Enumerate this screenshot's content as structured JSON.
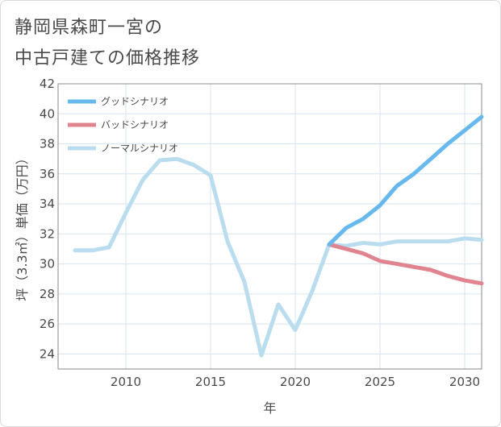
{
  "title_lines": [
    "静岡県森町一宮の",
    "中古戸建ての価格推移"
  ],
  "chart_data": {
    "type": "line",
    "title": "静岡県森町一宮の中古戸建ての価格推移",
    "xlabel": "年",
    "ylabel": "坪（3.3㎡）単価（万円）",
    "xlim": [
      2006,
      2031
    ],
    "ylim": [
      23,
      42
    ],
    "xticks": [
      2010,
      2015,
      2020,
      2025,
      2030
    ],
    "yticks": [
      24,
      26,
      28,
      30,
      32,
      34,
      36,
      38,
      40,
      42
    ],
    "grid": true,
    "legend_position": "top-left",
    "series": [
      {
        "name": "グッドシナリオ",
        "color": "#67b8ec",
        "x": [
          2022,
          2023,
          2024,
          2025,
          2026,
          2027,
          2028,
          2029,
          2030,
          2031
        ],
        "values": [
          31.3,
          32.4,
          33.0,
          33.9,
          35.2,
          36.0,
          37.0,
          38.0,
          38.9,
          39.8
        ]
      },
      {
        "name": "バッドシナリオ",
        "color": "#e0848f",
        "x": [
          2022,
          2023,
          2024,
          2025,
          2026,
          2027,
          2028,
          2029,
          2030,
          2031
        ],
        "values": [
          31.3,
          31.0,
          30.7,
          30.2,
          30.0,
          29.8,
          29.6,
          29.2,
          28.9,
          28.7
        ]
      },
      {
        "name": "ノーマルシナリオ",
        "color": "#b9ddef",
        "x": [
          2007,
          2008,
          2009,
          2010,
          2011,
          2012,
          2013,
          2014,
          2015,
          2016,
          2017,
          2018,
          2019,
          2020,
          2021,
          2022,
          2023,
          2024,
          2025,
          2026,
          2027,
          2028,
          2029,
          2030,
          2031
        ],
        "values": [
          30.9,
          30.9,
          31.1,
          33.4,
          35.6,
          36.9,
          37.0,
          36.6,
          35.9,
          31.5,
          28.8,
          23.9,
          27.3,
          25.6,
          28.2,
          31.3,
          31.2,
          31.4,
          31.3,
          31.5,
          31.5,
          31.5,
          31.5,
          31.7,
          31.6
        ]
      }
    ]
  }
}
